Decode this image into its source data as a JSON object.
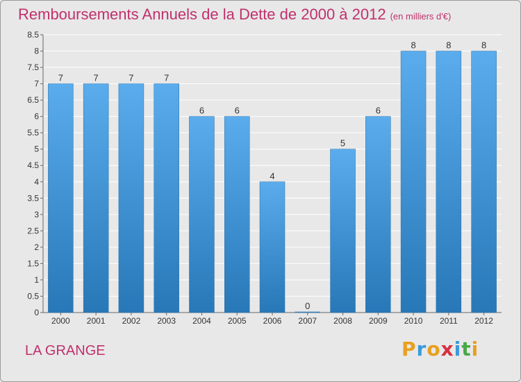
{
  "header": {
    "title": "Remboursements Annuels de la Dette de 2000 à 2012",
    "unit": "(en milliers d'€)"
  },
  "footer": {
    "city": "LA GRANGE",
    "logo": {
      "letters": [
        "P",
        "r",
        "o",
        "x",
        "i",
        "t",
        "i"
      ],
      "colors": [
        "#e8a020",
        "#3a9ad9",
        "#e8a020",
        "#d83040",
        "#3a9ad9",
        "#48a848",
        "#e8a020"
      ]
    }
  },
  "colors": {
    "bar": "#3c96d8",
    "bar_top": "#5aacec",
    "bar_bottom": "#2878b8",
    "title": "#c0306c"
  },
  "chart_data": {
    "type": "bar",
    "title": "Remboursements Annuels de la Dette de 2000 à 2012",
    "ylabel": "en milliers d'€",
    "xlabel": "",
    "categories": [
      "2000",
      "2001",
      "2002",
      "2003",
      "2004",
      "2005",
      "2006",
      "2007",
      "2008",
      "2009",
      "2010",
      "2011",
      "2012"
    ],
    "values": [
      7,
      7,
      7,
      7,
      6,
      6,
      4,
      0,
      5,
      6,
      8,
      8,
      8
    ],
    "ylim": [
      0,
      8.5
    ],
    "yticks": [
      "0",
      "0.5",
      "1",
      "1.5",
      "2",
      "2.5",
      "3",
      "3.5",
      "4",
      "4.5",
      "5",
      "5.5",
      "6",
      "6.5",
      "7",
      "7.5",
      "8",
      "8.5"
    ],
    "grid": true
  }
}
